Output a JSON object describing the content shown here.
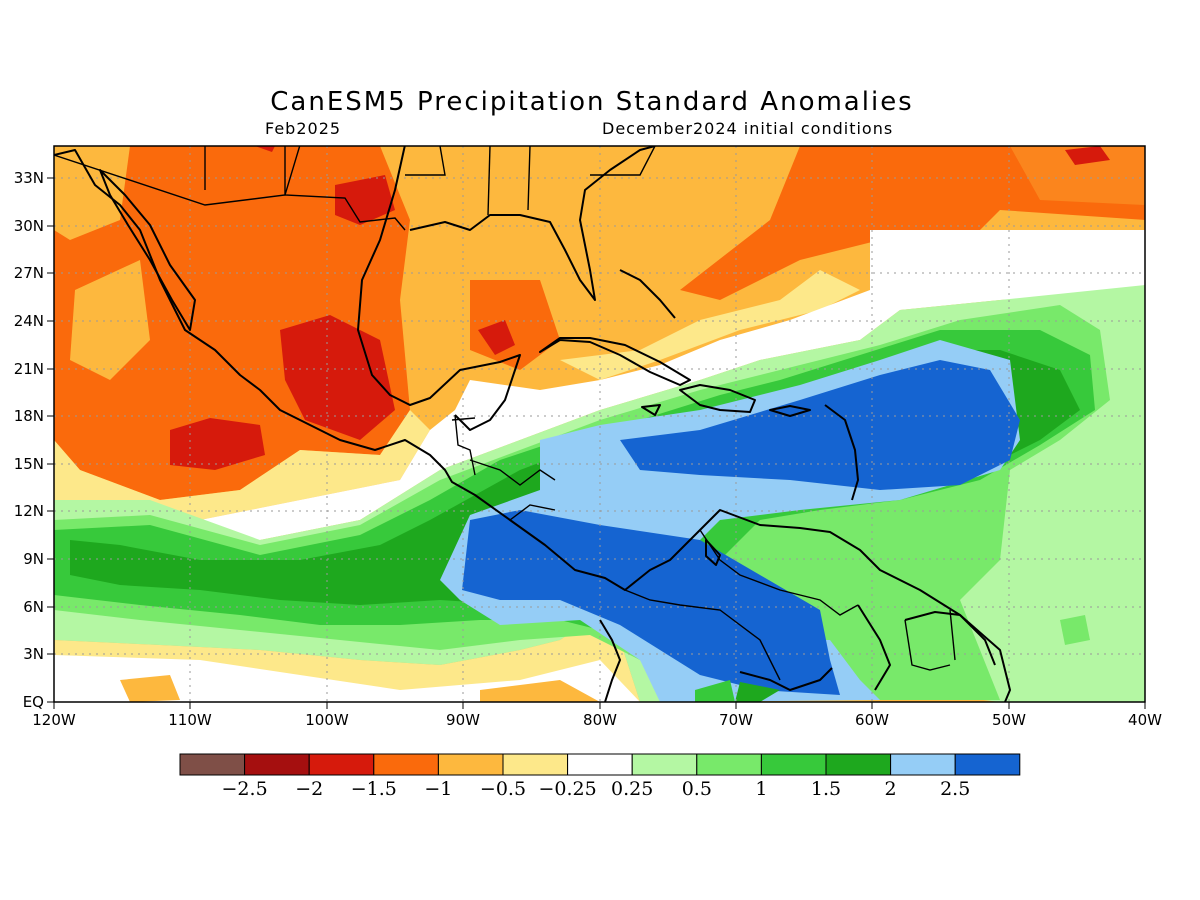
{
  "title": "CanESM5 Precipitation Standard Anomalies",
  "subtitle_left": "Feb2025",
  "subtitle_right": "December2024 initial conditions",
  "chart_data": {
    "type": "heatmap",
    "variable": "Precipitation Standard Anomalies",
    "lon_range": [
      -120,
      -40
    ],
    "lat_range": [
      0,
      35
    ],
    "lat_ticks": [
      "EQ",
      "3N",
      "6N",
      "9N",
      "12N",
      "15N",
      "18N",
      "21N",
      "24N",
      "27N",
      "30N",
      "33N"
    ],
    "lon_ticks": [
      "120W",
      "110W",
      "100W",
      "90W",
      "80W",
      "70W",
      "60W",
      "50W",
      "40W"
    ],
    "colorbar": {
      "labels": [
        "−2.5",
        "−2",
        "−1.5",
        "−1",
        "−0.5",
        "−0.25",
        "0.25",
        "0.5",
        "1",
        "1.5",
        "2",
        "2.5"
      ],
      "colors": [
        "#7f4f47",
        "#a50f0f",
        "#d61a0c",
        "#fa6a0c",
        "#fdb83e",
        "#fde88a",
        "#ffffff",
        "#b4f7a3",
        "#78e96a",
        "#37c93b",
        "#1ea81e",
        "#95cdf6",
        "#1564d1"
      ]
    },
    "grid": true
  }
}
